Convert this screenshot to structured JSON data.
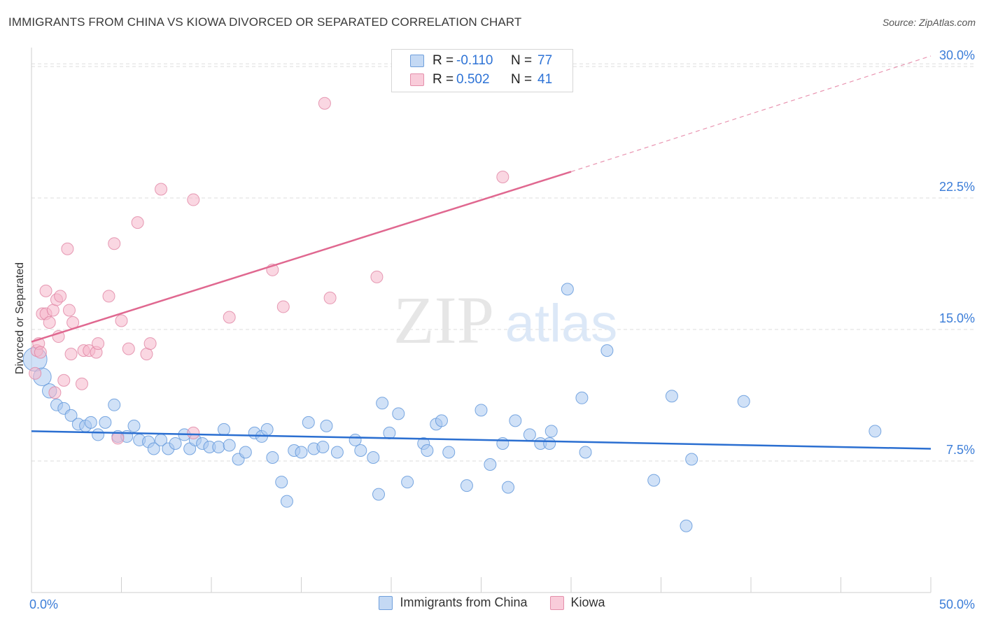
{
  "title": "IMMIGRANTS FROM CHINA VS KIOWA DIVORCED OR SEPARATED CORRELATION CHART",
  "source": "Source: ZipAtlas.com",
  "watermark": {
    "zip": "ZIP",
    "atlas": "atlas"
  },
  "colors": {
    "blue_fill": "#a9c8f0",
    "blue_stroke": "#5b93d9",
    "blue_line": "#2b6fd1",
    "pink_fill": "#f6b7ca",
    "pink_stroke": "#e083a2",
    "pink_line": "#e06890",
    "tick_text": "#3b7dd8",
    "grid": "#dddddd"
  },
  "legend": {
    "rows": [
      {
        "r_label": "R =",
        "r_value": "-0.110",
        "n_label": "N =",
        "n_value": "77",
        "color": "blue"
      },
      {
        "r_label": "R =",
        "r_value": "0.502",
        "n_label": "N =",
        "n_value": "41",
        "color": "pink"
      }
    ]
  },
  "chart_data": {
    "type": "scatter",
    "title": "IMMIGRANTS FROM CHINA VS KIOWA DIVORCED OR SEPARATED CORRELATION CHART",
    "xlabel": "",
    "ylabel": "Divorced or Separated",
    "xlim": [
      0,
      50
    ],
    "ylim": [
      0,
      31
    ],
    "x_ticks": [
      {
        "value": 0,
        "label": "0.0%"
      },
      {
        "value": 50,
        "label": "50.0%"
      }
    ],
    "y_ticks": [
      {
        "value": 7.5,
        "label": "7.5%"
      },
      {
        "value": 15.0,
        "label": "15.0%"
      },
      {
        "value": 22.5,
        "label": "22.5%"
      },
      {
        "value": 30.0,
        "label": "30.0%"
      }
    ],
    "grid": true,
    "legend_position": "top-center",
    "series": [
      {
        "name": "Immigrants from China",
        "color": "blue",
        "trend": {
          "x0": 0,
          "y0": 9.2,
          "x1": 50,
          "y1": 8.2
        },
        "points": [
          {
            "x": 0.2,
            "y": 13.3,
            "s": 2.0
          },
          {
            "x": 0.6,
            "y": 12.3,
            "s": 1.5
          },
          {
            "x": 1.0,
            "y": 11.5,
            "s": 1.2
          },
          {
            "x": 1.4,
            "y": 10.7
          },
          {
            "x": 1.8,
            "y": 10.5
          },
          {
            "x": 2.2,
            "y": 10.1
          },
          {
            "x": 2.6,
            "y": 9.6
          },
          {
            "x": 3.0,
            "y": 9.5
          },
          {
            "x": 3.3,
            "y": 9.7
          },
          {
            "x": 3.7,
            "y": 9.0
          },
          {
            "x": 4.1,
            "y": 9.7
          },
          {
            "x": 4.6,
            "y": 10.7
          },
          {
            "x": 4.8,
            "y": 8.9
          },
          {
            "x": 5.3,
            "y": 8.9
          },
          {
            "x": 5.7,
            "y": 9.5
          },
          {
            "x": 6.0,
            "y": 8.7
          },
          {
            "x": 6.5,
            "y": 8.6
          },
          {
            "x": 6.8,
            "y": 8.2
          },
          {
            "x": 7.2,
            "y": 8.7
          },
          {
            "x": 7.6,
            "y": 8.2
          },
          {
            "x": 8.0,
            "y": 8.5
          },
          {
            "x": 8.5,
            "y": 9.0
          },
          {
            "x": 8.8,
            "y": 8.2
          },
          {
            "x": 9.1,
            "y": 8.7
          },
          {
            "x": 9.5,
            "y": 8.5
          },
          {
            "x": 9.9,
            "y": 8.3
          },
          {
            "x": 10.4,
            "y": 8.3
          },
          {
            "x": 10.7,
            "y": 9.3
          },
          {
            "x": 11.0,
            "y": 8.4
          },
          {
            "x": 11.5,
            "y": 7.6
          },
          {
            "x": 11.9,
            "y": 8.0
          },
          {
            "x": 12.4,
            "y": 9.1
          },
          {
            "x": 12.8,
            "y": 8.9
          },
          {
            "x": 13.1,
            "y": 9.3
          },
          {
            "x": 13.4,
            "y": 7.7
          },
          {
            "x": 13.9,
            "y": 6.3
          },
          {
            "x": 14.2,
            "y": 5.2
          },
          {
            "x": 14.6,
            "y": 8.1
          },
          {
            "x": 15.0,
            "y": 8.0
          },
          {
            "x": 15.4,
            "y": 9.7
          },
          {
            "x": 15.7,
            "y": 8.2
          },
          {
            "x": 16.2,
            "y": 8.3
          },
          {
            "x": 16.4,
            "y": 9.5
          },
          {
            "x": 17.0,
            "y": 8.0
          },
          {
            "x": 18.0,
            "y": 8.7
          },
          {
            "x": 18.3,
            "y": 8.1
          },
          {
            "x": 19.0,
            "y": 7.7
          },
          {
            "x": 19.3,
            "y": 5.6
          },
          {
            "x": 19.5,
            "y": 10.8
          },
          {
            "x": 19.9,
            "y": 9.1
          },
          {
            "x": 20.4,
            "y": 10.2
          },
          {
            "x": 20.9,
            "y": 6.3
          },
          {
            "x": 21.8,
            "y": 8.5
          },
          {
            "x": 22.0,
            "y": 8.1
          },
          {
            "x": 22.5,
            "y": 9.6
          },
          {
            "x": 22.8,
            "y": 9.8
          },
          {
            "x": 23.2,
            "y": 8.0
          },
          {
            "x": 24.2,
            "y": 6.1
          },
          {
            "x": 25.0,
            "y": 10.4
          },
          {
            "x": 25.5,
            "y": 7.3
          },
          {
            "x": 26.2,
            "y": 8.5
          },
          {
            "x": 26.5,
            "y": 6.0
          },
          {
            "x": 26.9,
            "y": 9.8
          },
          {
            "x": 27.7,
            "y": 9.0
          },
          {
            "x": 28.3,
            "y": 8.5
          },
          {
            "x": 28.8,
            "y": 8.5
          },
          {
            "x": 28.9,
            "y": 9.2
          },
          {
            "x": 29.8,
            "y": 17.3
          },
          {
            "x": 30.6,
            "y": 11.1
          },
          {
            "x": 30.8,
            "y": 8.0
          },
          {
            "x": 32.0,
            "y": 13.8
          },
          {
            "x": 34.6,
            "y": 6.4
          },
          {
            "x": 35.6,
            "y": 11.2
          },
          {
            "x": 36.4,
            "y": 3.8
          },
          {
            "x": 36.7,
            "y": 7.6
          },
          {
            "x": 39.6,
            "y": 10.9
          },
          {
            "x": 46.9,
            "y": 9.2
          }
        ]
      },
      {
        "name": "Kiowa",
        "color": "pink",
        "trend": {
          "x0": 0,
          "y0": 14.3,
          "x1": 30,
          "y1": 24.0
        },
        "trend_dashed_to": {
          "x": 50,
          "y": 30.6
        },
        "points": [
          {
            "x": 0.2,
            "y": 12.5
          },
          {
            "x": 0.3,
            "y": 13.8
          },
          {
            "x": 0.4,
            "y": 14.2
          },
          {
            "x": 0.5,
            "y": 13.7
          },
          {
            "x": 0.6,
            "y": 15.9
          },
          {
            "x": 0.8,
            "y": 17.2
          },
          {
            "x": 0.8,
            "y": 15.9
          },
          {
            "x": 1.0,
            "y": 15.4
          },
          {
            "x": 1.2,
            "y": 16.1
          },
          {
            "x": 1.3,
            "y": 11.4
          },
          {
            "x": 1.4,
            "y": 16.7
          },
          {
            "x": 1.5,
            "y": 14.6
          },
          {
            "x": 1.6,
            "y": 16.9
          },
          {
            "x": 1.8,
            "y": 12.1
          },
          {
            "x": 2.0,
            "y": 19.6
          },
          {
            "x": 2.1,
            "y": 16.1
          },
          {
            "x": 2.2,
            "y": 13.6
          },
          {
            "x": 2.3,
            "y": 15.4
          },
          {
            "x": 2.8,
            "y": 11.9
          },
          {
            "x": 2.9,
            "y": 13.8
          },
          {
            "x": 3.2,
            "y": 13.8
          },
          {
            "x": 3.6,
            "y": 13.7
          },
          {
            "x": 3.7,
            "y": 14.2
          },
          {
            "x": 4.3,
            "y": 16.9
          },
          {
            "x": 4.6,
            "y": 19.9
          },
          {
            "x": 4.8,
            "y": 8.8
          },
          {
            "x": 5.0,
            "y": 15.5
          },
          {
            "x": 5.4,
            "y": 13.9
          },
          {
            "x": 5.9,
            "y": 21.1
          },
          {
            "x": 6.4,
            "y": 13.6
          },
          {
            "x": 6.6,
            "y": 14.2
          },
          {
            "x": 7.2,
            "y": 23.0
          },
          {
            "x": 9.0,
            "y": 22.4
          },
          {
            "x": 9.0,
            "y": 9.1
          },
          {
            "x": 11.0,
            "y": 15.7
          },
          {
            "x": 13.4,
            "y": 18.4
          },
          {
            "x": 14.0,
            "y": 16.3
          },
          {
            "x": 16.3,
            "y": 27.9
          },
          {
            "x": 16.6,
            "y": 16.8
          },
          {
            "x": 19.2,
            "y": 18.0
          },
          {
            "x": 26.2,
            "y": 23.7
          }
        ]
      }
    ]
  },
  "bottom_legend": [
    {
      "label": "Immigrants from China",
      "color": "blue"
    },
    {
      "label": "Kiowa",
      "color": "pink"
    }
  ]
}
